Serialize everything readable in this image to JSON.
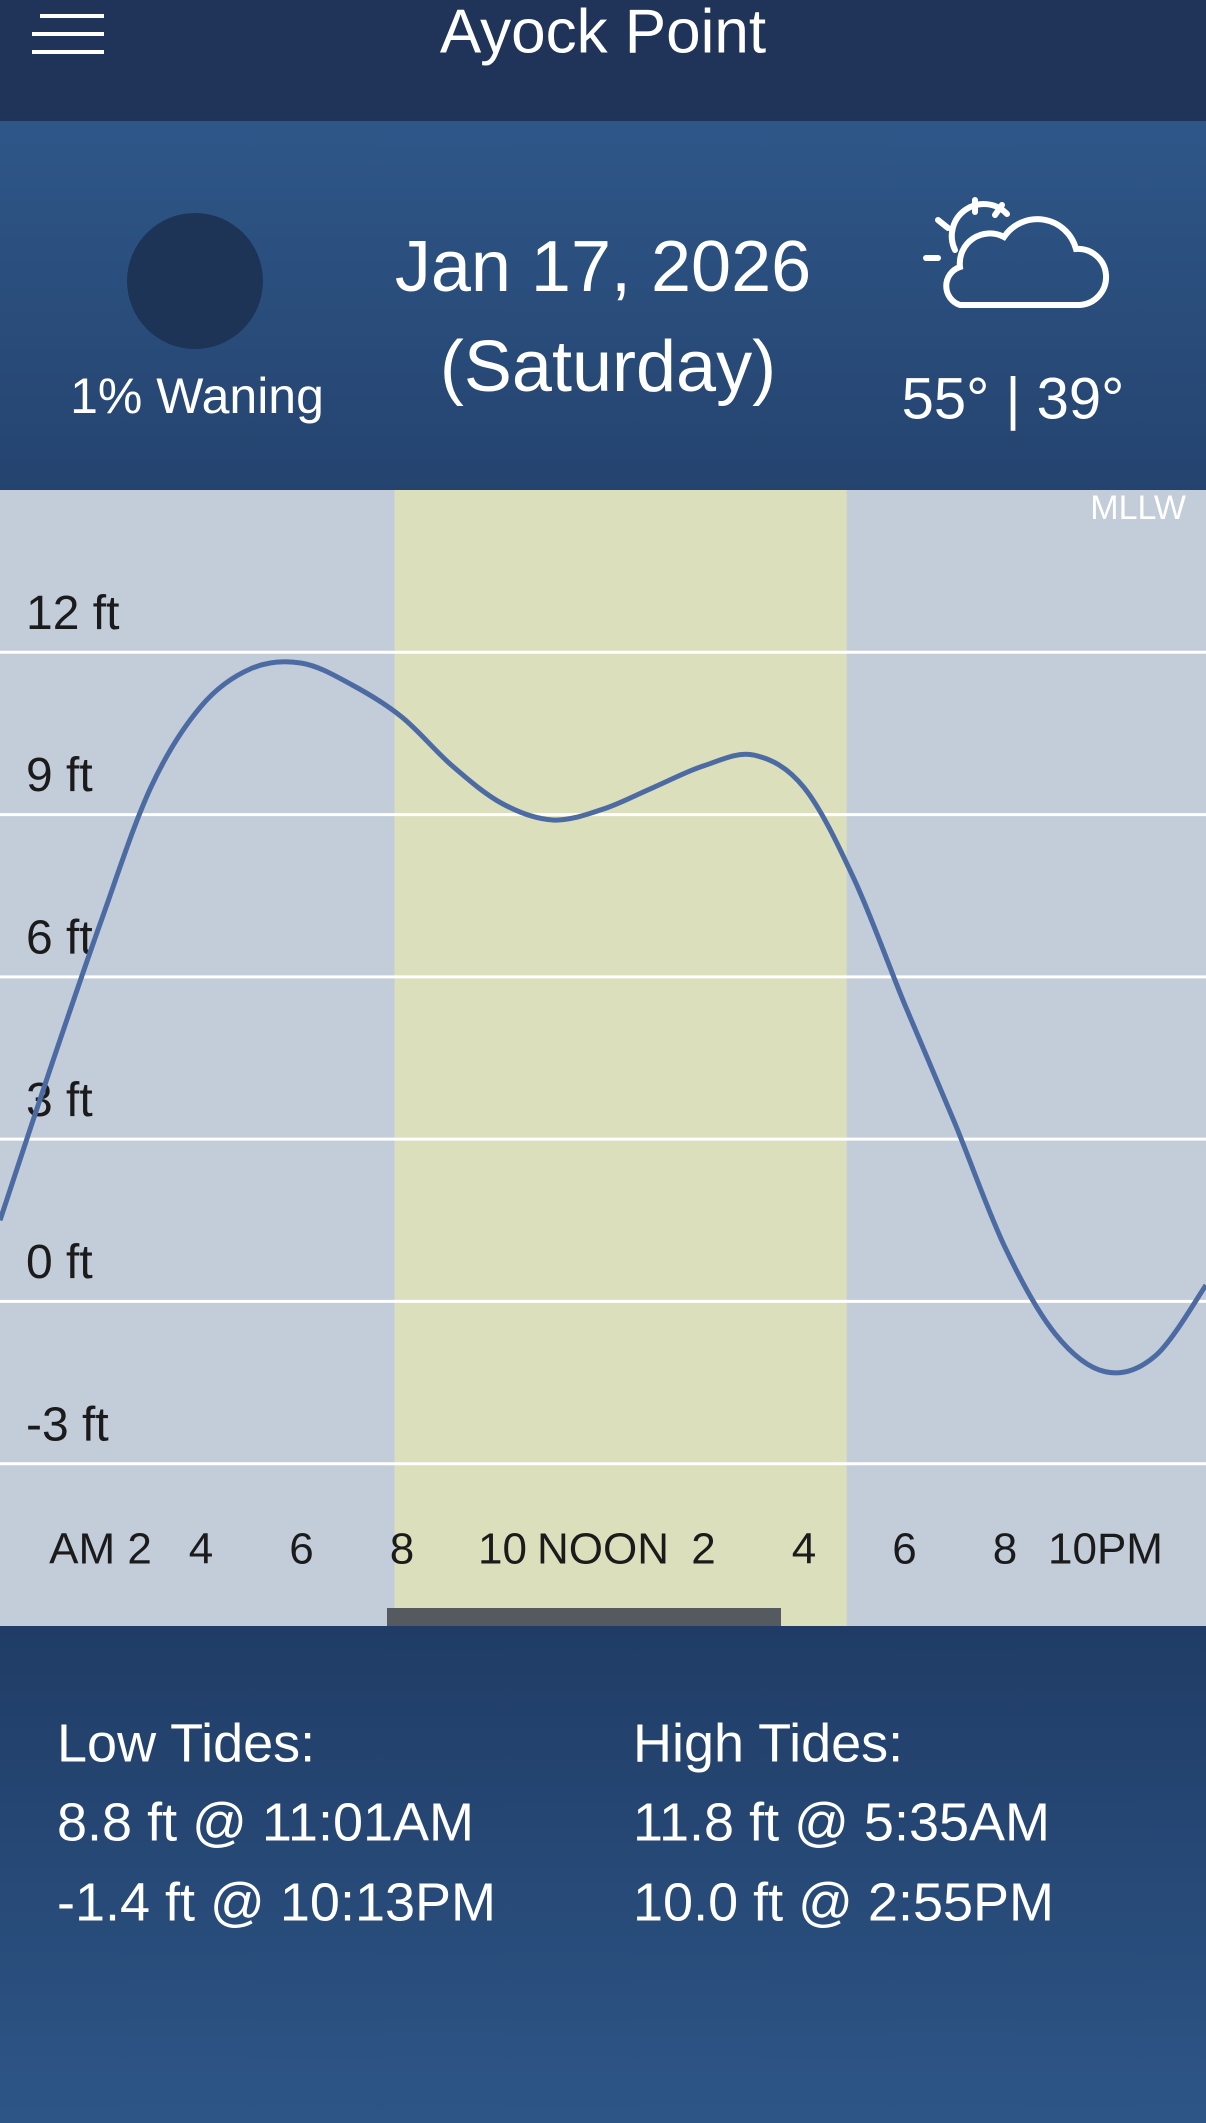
{
  "header": {
    "title": "Ayock Point"
  },
  "info": {
    "moon": "1% Waning",
    "date": "Jan 17, 2026",
    "weekday": "(Saturday)",
    "temps": "55° | 39°"
  },
  "chart_data": {
    "type": "line",
    "datum": "MLLW",
    "color": "#4d6ba3",
    "x": [
      0,
      1,
      2,
      3,
      4,
      5,
      6,
      7,
      8,
      9,
      10,
      11,
      12,
      13,
      14,
      15,
      16,
      17,
      18,
      19,
      20,
      21,
      22,
      23,
      24
    ],
    "values": [
      1.5,
      4.3,
      7.0,
      9.5,
      11.0,
      11.7,
      11.8,
      11.4,
      10.8,
      9.9,
      9.2,
      8.9,
      9.1,
      9.5,
      9.9,
      10.1,
      9.5,
      7.8,
      5.5,
      3.3,
      1.0,
      -0.6,
      -1.3,
      -1.0,
      0.3
    ],
    "xlim": [
      0,
      24
    ],
    "xticks": [
      {
        "value": 2,
        "label": "AM 2"
      },
      4,
      6,
      8,
      10,
      {
        "value": 12,
        "label": "NOON"
      },
      {
        "value": 14,
        "label": "2"
      },
      {
        "value": 16,
        "label": "4"
      },
      {
        "value": 18,
        "label": "6"
      },
      {
        "value": 20,
        "label": "8"
      },
      {
        "value": 22,
        "label": "10PM"
      }
    ],
    "ylim": [
      -6,
      15
    ],
    "yticks": [
      {
        "value": -3,
        "label": "-3 ft"
      },
      {
        "value": 0,
        "label": "0 ft"
      },
      {
        "value": 3,
        "label": "3 ft"
      },
      {
        "value": 6,
        "label": "6 ft"
      },
      {
        "value": 9,
        "label": "9 ft"
      },
      {
        "value": 12,
        "label": "12 ft"
      }
    ],
    "grid": true,
    "daylight": [
      7.85,
      16.85
    ],
    "daylight_color": "#dcdfbb"
  },
  "tides": {
    "low": {
      "title": "Low Tides:",
      "entries": [
        "8.8 ft @ 11:01AM",
        "-1.4 ft @ 10:13PM"
      ]
    },
    "high": {
      "title": "High Tides:",
      "entries": [
        "11.8 ft @ 5:35AM",
        "10.0 ft @ 2:55PM"
      ]
    }
  }
}
